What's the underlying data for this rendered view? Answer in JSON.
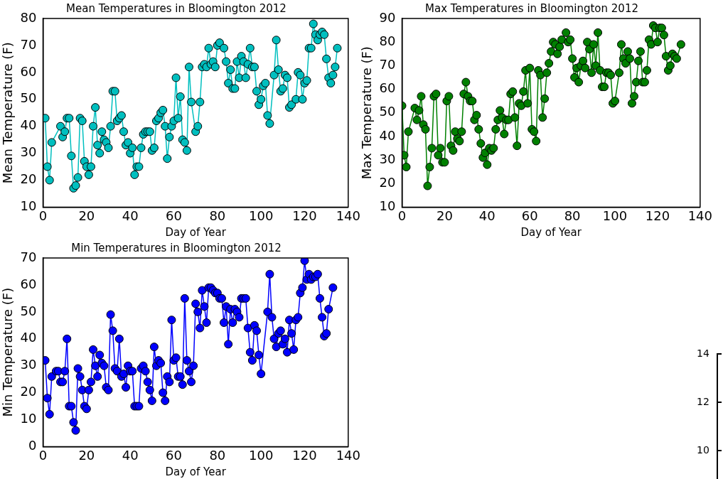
{
  "chart_data": [
    {
      "type": "line",
      "title": "Mean Temperatures in Bloomington 2012",
      "xlabel": "Day of Year",
      "ylabel": "Mean Temperature (F)",
      "xlim": [
        0,
        140
      ],
      "xticks": [
        0,
        20,
        40,
        60,
        80,
        100,
        120,
        140
      ],
      "ylim": [
        10,
        80
      ],
      "yticks": [
        10,
        20,
        30,
        40,
        50,
        60,
        70,
        80
      ],
      "grid": false,
      "legend": false,
      "marker": "circle",
      "line_style": "solid",
      "series": [
        {
          "color": "#00bfbf",
          "x": [
            1,
            2,
            3,
            4,
            8,
            9,
            10,
            11,
            12,
            13,
            14,
            15,
            16,
            17,
            18,
            19,
            20,
            21,
            22,
            23,
            24,
            25,
            26,
            27,
            28,
            29,
            30,
            31,
            32,
            33,
            34,
            35,
            36,
            37,
            38,
            39,
            40,
            41,
            42,
            43,
            44,
            45,
            46,
            47,
            48,
            49,
            50,
            51,
            52,
            53,
            54,
            55,
            56,
            57,
            58,
            59,
            60,
            61,
            62,
            63,
            64,
            65,
            66,
            67,
            68,
            70,
            71,
            72,
            73,
            74,
            75,
            76,
            77,
            78,
            79,
            80,
            81,
            83,
            84,
            85,
            86,
            87,
            88,
            89,
            90,
            91,
            92,
            93,
            94,
            95,
            96,
            97,
            98,
            99,
            100,
            101,
            102,
            103,
            104,
            106,
            107,
            108,
            109,
            110,
            111,
            112,
            113,
            114,
            116,
            117,
            118,
            119,
            120,
            121,
            122,
            123,
            124,
            125,
            126,
            127,
            128,
            129,
            130,
            131,
            132,
            133,
            134,
            135
          ],
          "values": [
            43,
            25,
            20,
            34,
            40,
            36,
            38,
            43,
            43,
            29,
            17,
            18,
            21,
            43,
            42,
            27,
            25,
            22,
            25,
            40,
            47,
            33,
            30,
            38,
            35,
            34,
            32,
            40,
            53,
            53,
            42,
            43,
            44,
            38,
            33,
            34,
            30,
            32,
            22,
            25,
            25,
            32,
            37,
            38,
            38,
            38,
            31,
            32,
            42,
            43,
            45,
            46,
            40,
            28,
            36,
            40,
            42,
            58,
            43,
            51,
            35,
            34,
            31,
            62,
            49,
            38,
            40,
            49,
            62,
            63,
            62,
            69,
            63,
            64,
            62,
            70,
            71,
            69,
            64,
            56,
            61,
            54,
            54,
            64,
            58,
            66,
            64,
            58,
            63,
            69,
            62,
            62,
            53,
            48,
            50,
            55,
            56,
            44,
            41,
            59,
            72,
            61,
            53,
            54,
            59,
            58,
            47,
            48,
            50,
            60,
            59,
            50,
            56,
            57,
            69,
            69,
            78,
            74,
            72,
            74,
            75,
            74,
            65,
            58,
            56,
            59,
            62,
            69
          ]
        }
      ]
    },
    {
      "type": "line",
      "title": "Max Temperatures in Bloomington 2012",
      "xlabel": "Day of Year",
      "ylabel": "Max Temperature (F)",
      "xlim": [
        0,
        140
      ],
      "xticks": [
        0,
        20,
        40,
        60,
        80,
        100,
        120,
        140
      ],
      "ylim": [
        10,
        90
      ],
      "yticks": [
        10,
        20,
        30,
        40,
        50,
        60,
        70,
        80,
        90
      ],
      "grid": false,
      "legend": false,
      "marker": "circle",
      "line_style": "solid",
      "series": [
        {
          "color": "#008000",
          "x": [
            0,
            1,
            2,
            3,
            6,
            7,
            8,
            9,
            10,
            11,
            12,
            13,
            14,
            15,
            16,
            17,
            18,
            19,
            20,
            21,
            22,
            23,
            24,
            25,
            26,
            27,
            28,
            29,
            30,
            31,
            32,
            33,
            34,
            35,
            36,
            37,
            38,
            39,
            40,
            41,
            42,
            43,
            44,
            45,
            46,
            47,
            48,
            49,
            50,
            51,
            52,
            53,
            54,
            55,
            56,
            57,
            58,
            59,
            60,
            61,
            62,
            63,
            64,
            65,
            66,
            67,
            68,
            69,
            70,
            71,
            72,
            73,
            74,
            75,
            77,
            78,
            79,
            80,
            81,
            82,
            83,
            84,
            85,
            86,
            87,
            88,
            89,
            90,
            91,
            92,
            93,
            94,
            95,
            96,
            97,
            98,
            99,
            100,
            102,
            103,
            104,
            105,
            106,
            107,
            108,
            109,
            110,
            111,
            112,
            113,
            114,
            115,
            116,
            117,
            118,
            119,
            120,
            121,
            122,
            123,
            124,
            125,
            126,
            127,
            128,
            129,
            131
          ],
          "values": [
            53,
            32,
            27,
            42,
            52,
            47,
            51,
            57,
            45,
            43,
            19,
            27,
            35,
            57,
            58,
            32,
            35,
            29,
            29,
            55,
            57,
            36,
            34,
            42,
            39,
            38,
            42,
            58,
            63,
            57,
            55,
            55,
            47,
            49,
            43,
            37,
            31,
            33,
            28,
            35,
            34,
            35,
            43,
            47,
            51,
            48,
            41,
            47,
            47,
            58,
            59,
            48,
            36,
            54,
            53,
            59,
            68,
            54,
            69,
            43,
            42,
            38,
            68,
            66,
            48,
            56,
            67,
            71,
            76,
            80,
            79,
            75,
            78,
            81,
            84,
            80,
            81,
            73,
            65,
            69,
            63,
            70,
            72,
            69,
            80,
            77,
            67,
            79,
            70,
            84,
            68,
            61,
            61,
            67,
            67,
            66,
            54,
            55,
            67,
            79,
            73,
            71,
            76,
            73,
            54,
            57,
            63,
            72,
            76,
            63,
            63,
            68,
            81,
            79,
            87,
            86,
            80,
            86,
            86,
            83,
            74,
            68,
            70,
            75,
            74,
            73,
            79
          ]
        }
      ]
    },
    {
      "type": "line",
      "title": "Min Temperatures in Bloomington 2012",
      "xlabel": "Day of Year",
      "ylabel": "Min Temperature (F)",
      "xlim": [
        0,
        140
      ],
      "xticks": [
        0,
        20,
        40,
        60,
        80,
        100,
        120,
        140
      ],
      "ylim": [
        0,
        70
      ],
      "yticks": [
        0,
        10,
        20,
        30,
        40,
        50,
        60,
        70
      ],
      "grid": false,
      "legend": false,
      "marker": "circle",
      "line_style": "solid",
      "series": [
        {
          "color": "#0000ff",
          "x": [
            1,
            2,
            3,
            4,
            6,
            7,
            8,
            9,
            10,
            11,
            12,
            13,
            14,
            15,
            16,
            17,
            18,
            19,
            20,
            21,
            22,
            23,
            24,
            25,
            26,
            27,
            28,
            29,
            30,
            31,
            32,
            33,
            34,
            35,
            36,
            37,
            38,
            39,
            40,
            41,
            42,
            43,
            44,
            45,
            46,
            47,
            48,
            49,
            50,
            51,
            52,
            53,
            54,
            55,
            56,
            57,
            58,
            59,
            60,
            61,
            62,
            63,
            64,
            65,
            66,
            67,
            68,
            69,
            70,
            71,
            72,
            73,
            74,
            75,
            76,
            77,
            78,
            79,
            80,
            81,
            82,
            83,
            84,
            85,
            86,
            87,
            88,
            89,
            90,
            91,
            92,
            93,
            94,
            95,
            96,
            97,
            98,
            99,
            100,
            103,
            104,
            105,
            106,
            107,
            108,
            109,
            110,
            111,
            112,
            113,
            114,
            115,
            116,
            117,
            118,
            119,
            120,
            121,
            122,
            123,
            124,
            125,
            126,
            127,
            128,
            129,
            130,
            131,
            133
          ],
          "values": [
            32,
            18,
            12,
            26,
            28,
            28,
            24,
            24,
            28,
            40,
            15,
            15,
            9,
            6,
            29,
            26,
            21,
            15,
            14,
            21,
            24,
            36,
            30,
            26,
            34,
            31,
            30,
            22,
            21,
            49,
            43,
            29,
            28,
            40,
            26,
            27,
            22,
            30,
            28,
            28,
            15,
            15,
            15,
            29,
            30,
            28,
            24,
            21,
            17,
            37,
            30,
            32,
            31,
            20,
            17,
            26,
            24,
            47,
            32,
            33,
            26,
            26,
            23,
            55,
            32,
            28,
            24,
            30,
            53,
            50,
            44,
            58,
            52,
            46,
            59,
            59,
            58,
            57,
            57,
            55,
            55,
            46,
            52,
            38,
            51,
            46,
            51,
            50,
            48,
            55,
            55,
            55,
            44,
            35,
            32,
            45,
            43,
            34,
            27,
            50,
            64,
            48,
            40,
            37,
            42,
            43,
            38,
            40,
            35,
            47,
            42,
            36,
            47,
            48,
            57,
            59,
            69,
            62,
            64,
            62,
            63,
            63,
            64,
            55,
            48,
            41,
            42,
            51,
            59
          ]
        }
      ]
    },
    {
      "type": "other",
      "annotations": [
        "14",
        "12",
        "10"
      ]
    }
  ]
}
